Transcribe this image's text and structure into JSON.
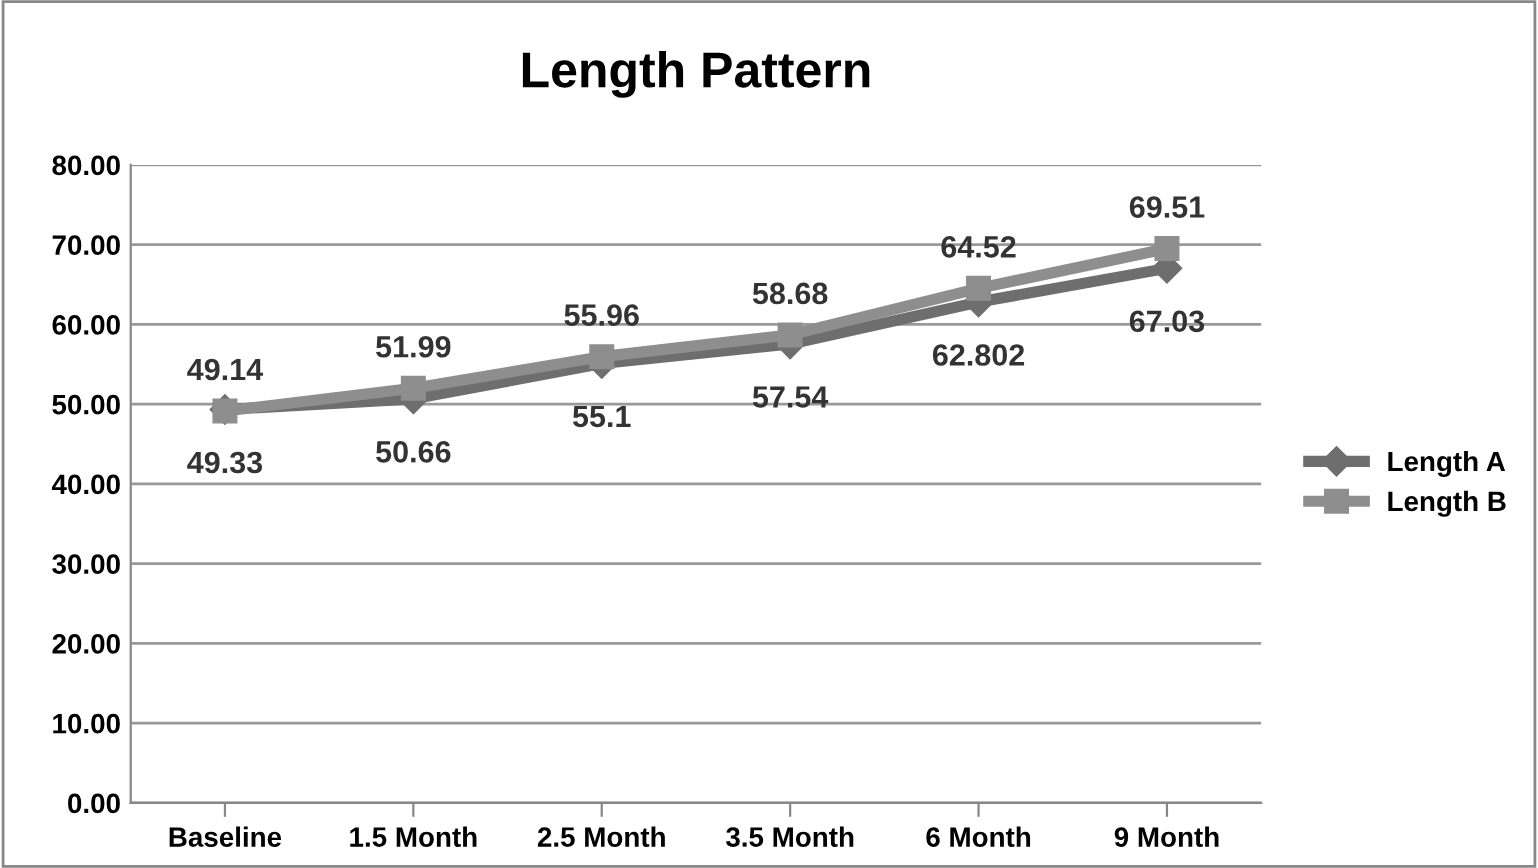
{
  "chart_data": {
    "type": "line",
    "title": "Length Pattern",
    "categories": [
      "Baseline",
      "1.5 Month",
      "2.5 Month",
      "3.5 Month",
      "6 Month",
      "9 Month"
    ],
    "series": [
      {
        "name": "Length A",
        "color": "#6e6e6e",
        "marker": "diamond",
        "values": [
          49.33,
          50.66,
          55.1,
          57.54,
          62.802,
          67.03
        ]
      },
      {
        "name": "Length B",
        "color": "#8e8e8e",
        "marker": "square",
        "values": [
          49.14,
          51.99,
          55.96,
          58.68,
          64.52,
          69.51
        ]
      }
    ],
    "ylim": [
      0,
      80
    ],
    "yticks": [
      {
        "value": 0,
        "label": "0.00"
      },
      {
        "value": 10,
        "label": "10.00"
      },
      {
        "value": 20,
        "label": "20.00"
      },
      {
        "value": 30,
        "label": "30.00"
      },
      {
        "value": 40,
        "label": "40.00"
      },
      {
        "value": 50,
        "label": "50.00"
      },
      {
        "value": 60,
        "label": "60.00"
      },
      {
        "value": 70,
        "label": "70.00"
      },
      {
        "value": 80,
        "label": "80.00"
      }
    ],
    "grid": "y",
    "legend": "right",
    "data_labels": true,
    "line_style": "solid"
  }
}
